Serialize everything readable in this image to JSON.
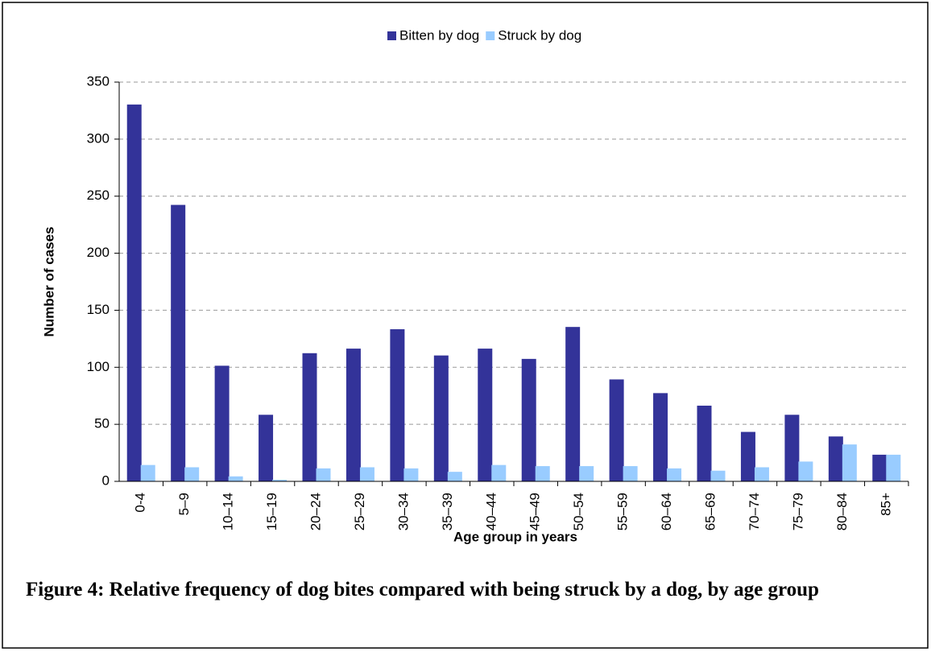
{
  "chart_data": {
    "type": "bar",
    "caption": "Figure 4: Relative frequency of dog bites compared with being struck by a dog, by age group",
    "x_label": "Age group in years",
    "y_label": "Number of cases",
    "categories": [
      "0-4",
      "5–9",
      "10–14",
      "15–19",
      "20–24",
      "25–29",
      "30–34",
      "35–39",
      "40–44",
      "45–49",
      "50–54",
      "55–59",
      "60–64",
      "65–69",
      "70–74",
      "75–79",
      "80–84",
      "85+"
    ],
    "series": [
      {
        "name": "Bitten by dog",
        "color": "#333399",
        "values": [
          330,
          242,
          101,
          58,
          112,
          116,
          133,
          110,
          116,
          107,
          135,
          89,
          77,
          66,
          43,
          58,
          39,
          23
        ]
      },
      {
        "name": "Struck by dog",
        "color": "#99ccff",
        "values": [
          14,
          12,
          4,
          1,
          11,
          12,
          11,
          8,
          14,
          13,
          13,
          13,
          11,
          9,
          12,
          17,
          32,
          23
        ]
      }
    ],
    "ylim": [
      0,
      350
    ],
    "yticks": [
      0,
      50,
      100,
      150,
      200,
      250,
      300,
      350
    ],
    "grid": true,
    "legend": "top"
  }
}
